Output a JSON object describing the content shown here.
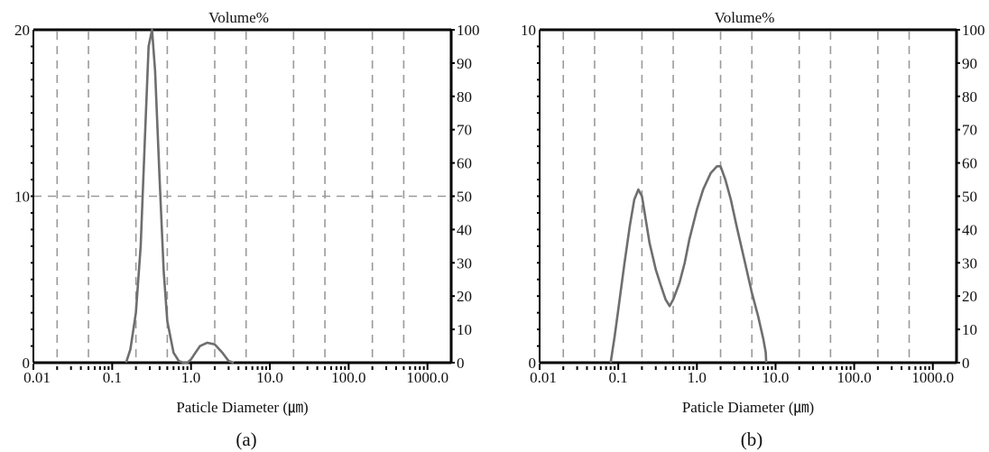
{
  "chart_data": [
    {
      "type": "line",
      "caption": "(a)",
      "title": "Volume%",
      "xlabel": "Paticle Diameter (㎛)",
      "x_scale": "log",
      "xlim": [
        0.01,
        2000
      ],
      "x_tick_labels": [
        "0.01",
        "0.1",
        "1.0",
        "10.0",
        "100.0",
        "1000.0"
      ],
      "y_left_ticks": [
        "0",
        "10",
        "20"
      ],
      "ylim": [
        0,
        20
      ],
      "y_right_ticks": [
        "0",
        "10",
        "20",
        "30",
        "40",
        "50",
        "60",
        "70",
        "80",
        "90",
        "100"
      ],
      "y2lim": [
        0,
        100
      ],
      "grid": "dashed vertical lines and a dashed horizontal line at 10",
      "series": [
        {
          "x": [
            0.15,
            0.17,
            0.2,
            0.23,
            0.26,
            0.29,
            0.32,
            0.35,
            0.4,
            0.45,
            0.5,
            0.6,
            0.7,
            0.8,
            0.9,
            1.0,
            1.1,
            1.3,
            1.6,
            2.0,
            2.5,
            3.0,
            3.5
          ],
          "values": [
            0,
            0.8,
            3.0,
            7.0,
            13.5,
            19.0,
            20.0,
            17.5,
            11.0,
            5.5,
            2.5,
            0.6,
            0.1,
            0,
            0,
            0.2,
            0.5,
            1.0,
            1.2,
            1.1,
            0.6,
            0.1,
            0
          ]
        }
      ]
    },
    {
      "type": "line",
      "caption": "(b)",
      "title": "Volume%",
      "xlabel": "Paticle Diameter (㎛)",
      "x_scale": "log",
      "xlim": [
        0.01,
        2000
      ],
      "x_tick_labels": [
        "0.01",
        "0.1",
        "1.0",
        "10.0",
        "100.0",
        "1000.0"
      ],
      "y_left_ticks": [
        "0",
        "10"
      ],
      "ylim": [
        0,
        10
      ],
      "y_right_ticks": [
        "0",
        "10",
        "20",
        "30",
        "40",
        "50",
        "60",
        "70",
        "80",
        "90",
        "100"
      ],
      "y2lim": [
        0,
        100
      ],
      "grid": "dashed vertical lines",
      "series": [
        {
          "x": [
            0.08,
            0.09,
            0.1,
            0.12,
            0.14,
            0.16,
            0.18,
            0.2,
            0.22,
            0.25,
            0.3,
            0.35,
            0.4,
            0.45,
            0.5,
            0.6,
            0.7,
            0.8,
            1.0,
            1.2,
            1.5,
            1.8,
            2.0,
            2.3,
            2.7,
            3.2,
            4.0,
            5.0,
            6.0,
            7.0,
            7.5,
            7.6
          ],
          "values": [
            0,
            0.8,
            1.6,
            3.0,
            4.1,
            4.9,
            5.2,
            5.0,
            4.4,
            3.6,
            2.8,
            2.3,
            1.9,
            1.7,
            1.9,
            2.4,
            3.0,
            3.7,
            4.6,
            5.2,
            5.7,
            5.9,
            5.9,
            5.5,
            4.9,
            4.1,
            3.1,
            2.1,
            1.4,
            0.7,
            0.3,
            0
          ]
        }
      ]
    }
  ]
}
